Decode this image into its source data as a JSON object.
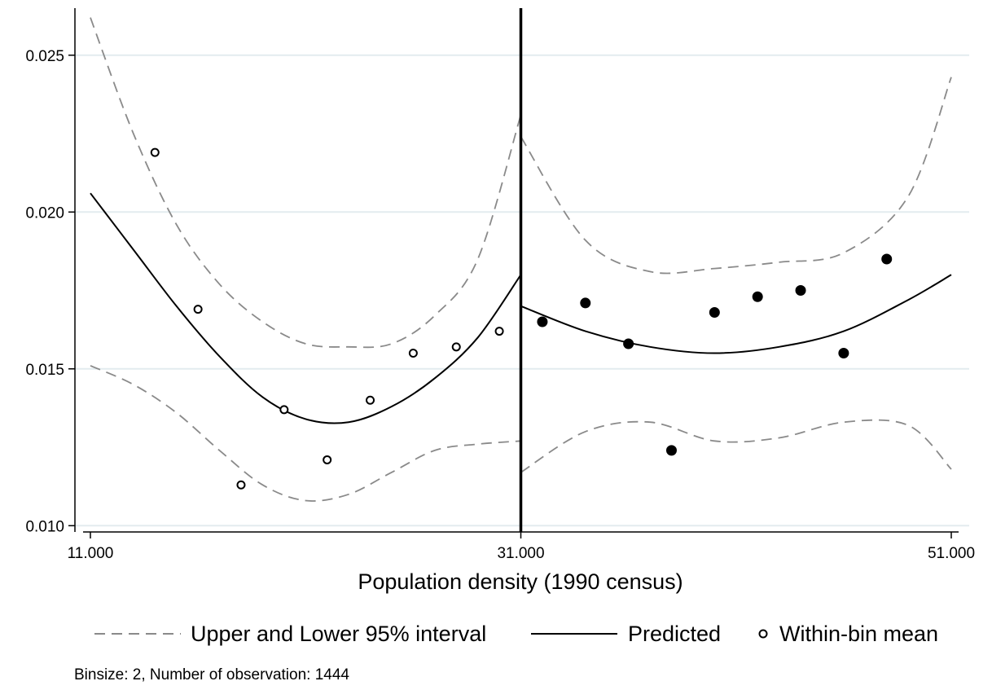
{
  "chart_data": {
    "type": "scatter",
    "title": "",
    "xlabel": "Population density (1990 census)",
    "ylabel": "",
    "xlim": [
      11.0,
      51.0
    ],
    "ylim": [
      0.0098,
      0.0265
    ],
    "xticks": [
      11.0,
      31.0,
      51.0
    ],
    "xtick_labels": [
      "11.000",
      "31.000",
      "51.000"
    ],
    "yticks": [
      0.01,
      0.015,
      0.02,
      0.025
    ],
    "ytick_labels": [
      "0.010",
      "0.015",
      "0.020",
      "0.025"
    ],
    "grid": "horizontal",
    "cutoff": 31.0,
    "legend": {
      "position": "bottom",
      "entries": [
        "Upper and Lower 95% interval",
        "Predicted",
        "Within-bin mean"
      ]
    },
    "note": "Binsize: 2, Number of observation: 1444",
    "series": [
      {
        "name": "Within-bin mean",
        "kind": "points",
        "x": [
          14,
          16,
          18,
          20,
          22,
          24,
          26,
          28,
          30
        ],
        "y": [
          0.0219,
          0.0169,
          0.0113,
          0.0137,
          0.0121,
          0.014,
          0.0155,
          0.0157,
          0.0162
        ]
      },
      {
        "name": "Within-bin mean",
        "kind": "points-filled",
        "x": [
          32,
          34,
          36,
          38,
          40,
          42,
          44,
          46,
          48
        ],
        "y": [
          0.0165,
          0.0171,
          0.0158,
          0.0124,
          0.0168,
          0.0173,
          0.0175,
          0.0155,
          0.0185
        ]
      },
      {
        "name": "Predicted",
        "kind": "line",
        "x": [
          11,
          13,
          15,
          17,
          19,
          21,
          23,
          25,
          27,
          29,
          31
        ],
        "y": [
          0.0206,
          0.0188,
          0.017,
          0.0154,
          0.0141,
          0.0134,
          0.0133,
          0.0138,
          0.0147,
          0.016,
          0.018
        ]
      },
      {
        "name": "Predicted",
        "kind": "line",
        "x": [
          31,
          34,
          37,
          40,
          43,
          46,
          49,
          51
        ],
        "y": [
          0.017,
          0.0162,
          0.0157,
          0.0155,
          0.0157,
          0.0162,
          0.0172,
          0.018
        ]
      },
      {
        "name": "Upper and Lower 95% interval",
        "kind": "dashed",
        "x": [
          11,
          13,
          15,
          17,
          19,
          21,
          23,
          25,
          27,
          29,
          31
        ],
        "y": [
          0.0262,
          0.0225,
          0.0196,
          0.0177,
          0.0165,
          0.0158,
          0.0157,
          0.0158,
          0.0167,
          0.0185,
          0.0231
        ]
      },
      {
        "name": "Upper and Lower 95% interval",
        "kind": "dashed",
        "x": [
          11,
          13,
          15,
          17,
          19,
          21,
          23,
          25,
          27,
          29,
          31
        ],
        "y": [
          0.0151,
          0.0145,
          0.0136,
          0.0124,
          0.0113,
          0.0108,
          0.011,
          0.0117,
          0.0124,
          0.0126,
          0.0127
        ]
      },
      {
        "name": "Upper and Lower 95% interval",
        "kind": "dashed",
        "x": [
          31,
          34,
          37,
          40,
          43,
          46,
          49,
          51
        ],
        "y": [
          0.0224,
          0.0191,
          0.0181,
          0.0182,
          0.0184,
          0.0187,
          0.0205,
          0.0243
        ]
      },
      {
        "name": "Upper and Lower 95% interval",
        "kind": "dashed",
        "x": [
          31,
          34,
          37,
          40,
          43,
          46,
          49,
          51
        ],
        "y": [
          0.0117,
          0.013,
          0.0133,
          0.0127,
          0.0128,
          0.0133,
          0.0132,
          0.0118
        ]
      }
    ]
  }
}
